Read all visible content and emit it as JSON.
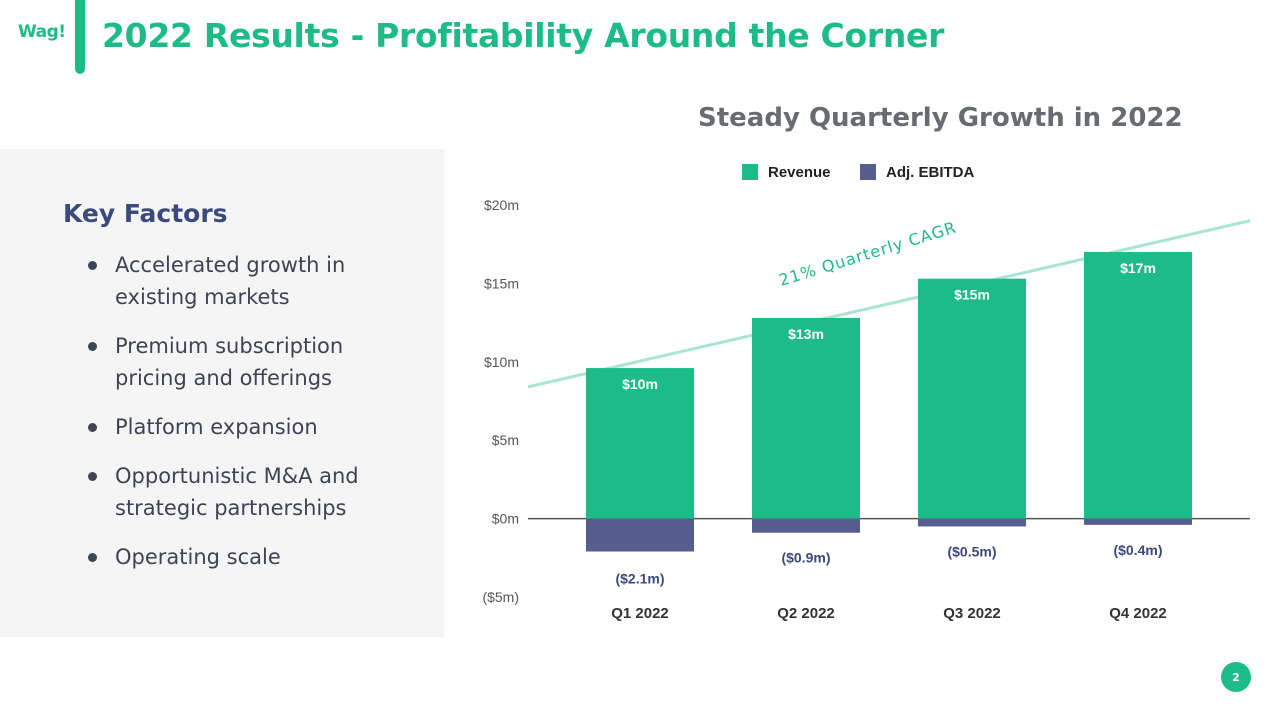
{
  "header": {
    "logo_text": "Wag!",
    "title": "2022 Results - Profitability Around the Corner"
  },
  "key_factors": {
    "heading": "Key Factors",
    "items": [
      "Accelerated growth in existing markets",
      "Premium subscription pricing and offerings",
      "Platform expansion",
      "Opportunistic M&A and strategic partnerships",
      "Operating scale"
    ]
  },
  "colors": {
    "accent": "#1dbb87",
    "revenue": "#1dbb87",
    "ebitda": "#575d8f",
    "heading": "#3b4a7c",
    "trend_line": "#a8e6d0"
  },
  "chart_data": {
    "type": "bar",
    "title": "Steady Quarterly Growth in 2022",
    "categories": [
      "Q1 2022",
      "Q2 2022",
      "Q3 2022",
      "Q4 2022"
    ],
    "series": [
      {
        "name": "Revenue",
        "values": [
          9.6,
          12.8,
          15.3,
          17.0
        ],
        "labels": [
          "$10m",
          "$13m",
          "$15m",
          "$17m"
        ]
      },
      {
        "name": "Adj. EBITDA",
        "values": [
          -2.1,
          -0.9,
          -0.5,
          -0.4
        ],
        "labels": [
          "($2.1m)",
          "($0.9m)",
          "($0.5m)",
          "($0.4m)"
        ]
      }
    ],
    "yticks": [
      20,
      15,
      10,
      5,
      0,
      -5
    ],
    "ytick_labels": [
      "$20m",
      "$15m",
      "$10m",
      "$5m",
      "$0m",
      "($5m)"
    ],
    "ylim": [
      -5,
      20
    ],
    "legend_position": "top",
    "trend_annotation": "21% Quarterly CAGR",
    "trend_line": {
      "start_value": 8.4,
      "end_value": 19.0
    }
  },
  "page_number": "2"
}
